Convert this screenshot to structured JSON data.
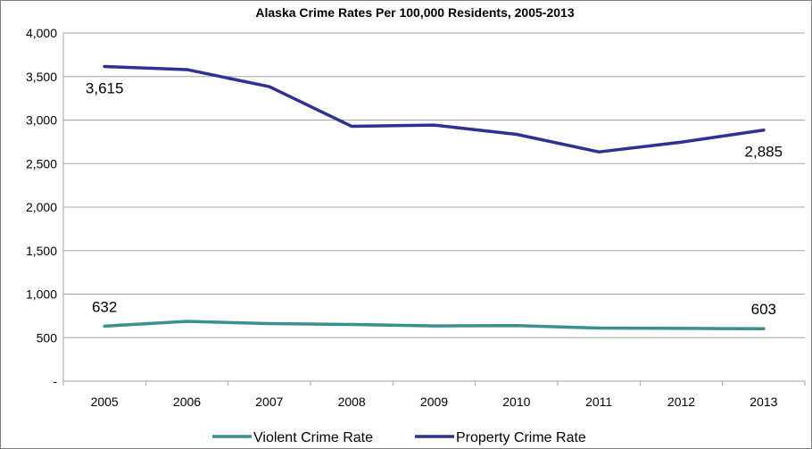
{
  "chart_data": {
    "type": "line",
    "title": "Alaska Crime Rates Per 100,000 Residents, 2005-2013",
    "xlabel": "",
    "ylabel": "",
    "x": [
      "2005",
      "2006",
      "2007",
      "2008",
      "2009",
      "2010",
      "2011",
      "2012",
      "2013"
    ],
    "ylim": [
      0,
      4000
    ],
    "yticks": [
      0,
      500,
      1000,
      1500,
      2000,
      2500,
      3000,
      3500,
      4000
    ],
    "ytick_labels": [
      "-",
      "500",
      "1,000",
      "1,500",
      "2,000",
      "2,500",
      "3,000",
      "3,500",
      "4,000"
    ],
    "grid": "horizontal",
    "legend_position": "bottom",
    "series": [
      {
        "name": "Violent Crime Rate",
        "color": "#3a8f8f",
        "values": [
          632,
          687,
          661,
          651,
          635,
          638,
          610,
          606,
          603
        ]
      },
      {
        "name": "Property Crime Rate",
        "color": "#2e3192",
        "values": [
          3615,
          3580,
          3384,
          2928,
          2942,
          2836,
          2634,
          2746,
          2885
        ]
      }
    ],
    "annotations": [
      {
        "series": 0,
        "index": 0,
        "text": "632"
      },
      {
        "series": 0,
        "index": 8,
        "text": "603"
      },
      {
        "series": 1,
        "index": 0,
        "text": "3,615"
      },
      {
        "series": 1,
        "index": 8,
        "text": "2,885"
      }
    ]
  }
}
